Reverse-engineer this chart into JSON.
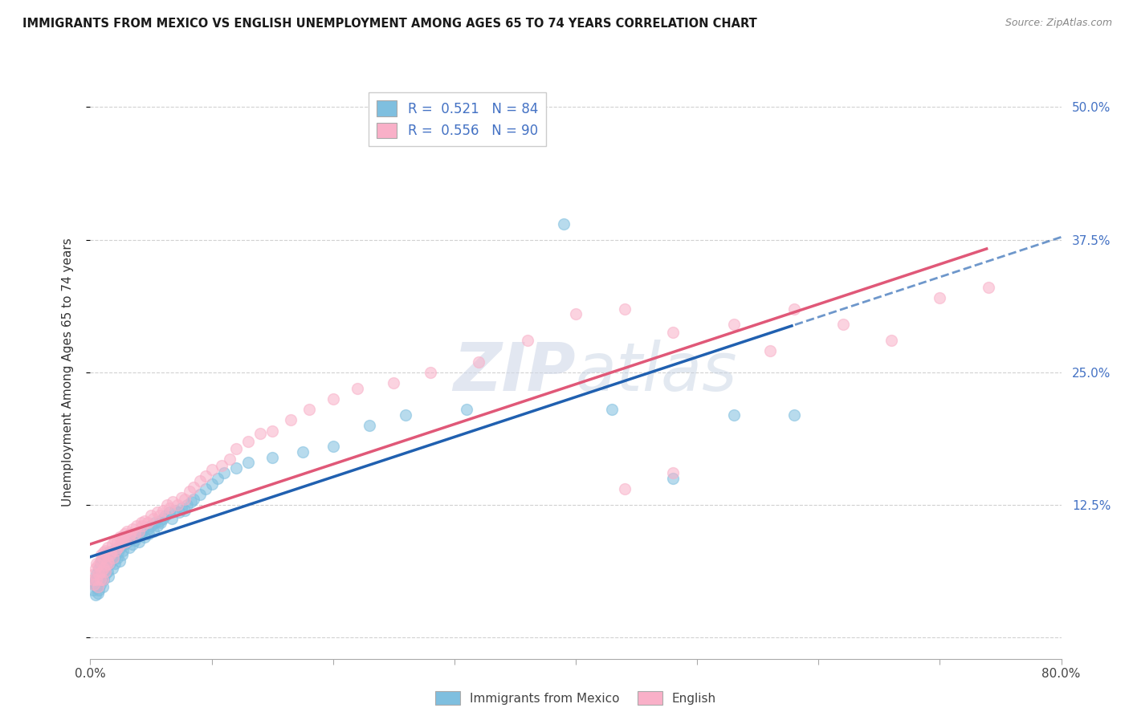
{
  "title": "IMMIGRANTS FROM MEXICO VS ENGLISH UNEMPLOYMENT AMONG AGES 65 TO 74 YEARS CORRELATION CHART",
  "source": "Source: ZipAtlas.com",
  "xlabel_bottom": [
    "Immigrants from Mexico",
    "English"
  ],
  "ylabel": "Unemployment Among Ages 65 to 74 years",
  "xmin": 0.0,
  "xmax": 0.8,
  "ymin": -0.02,
  "ymax": 0.52,
  "yticks": [
    0.0,
    0.125,
    0.25,
    0.375,
    0.5
  ],
  "ytick_labels": [
    "",
    "12.5%",
    "25.0%",
    "37.5%",
    "50.0%"
  ],
  "xticks": [
    0.0,
    0.1,
    0.2,
    0.3,
    0.4,
    0.5,
    0.6,
    0.7,
    0.8
  ],
  "xtick_labels": [
    "0.0%",
    "",
    "",
    "",
    "",
    "",
    "",
    "",
    "80.0%"
  ],
  "r_blue": 0.521,
  "n_blue": 84,
  "r_pink": 0.556,
  "n_pink": 90,
  "blue_color": "#7fbfdf",
  "pink_color": "#f9b0c8",
  "line_blue": "#2060b0",
  "line_pink": "#e05878",
  "watermark_zip": "ZIP",
  "watermark_atlas": "atlas",
  "blue_scatter_x": [
    0.002,
    0.003,
    0.004,
    0.004,
    0.005,
    0.005,
    0.006,
    0.006,
    0.007,
    0.007,
    0.008,
    0.008,
    0.009,
    0.009,
    0.01,
    0.01,
    0.011,
    0.011,
    0.012,
    0.012,
    0.013,
    0.014,
    0.015,
    0.015,
    0.016,
    0.017,
    0.018,
    0.019,
    0.02,
    0.021,
    0.022,
    0.023,
    0.024,
    0.025,
    0.026,
    0.027,
    0.028,
    0.03,
    0.032,
    0.033,
    0.035,
    0.037,
    0.038,
    0.04,
    0.042,
    0.043,
    0.045,
    0.047,
    0.048,
    0.05,
    0.052,
    0.053,
    0.055,
    0.057,
    0.058,
    0.06,
    0.062,
    0.065,
    0.067,
    0.07,
    0.073,
    0.075,
    0.078,
    0.08,
    0.083,
    0.085,
    0.09,
    0.095,
    0.1,
    0.105,
    0.11,
    0.12,
    0.13,
    0.15,
    0.175,
    0.2,
    0.23,
    0.26,
    0.31,
    0.39,
    0.43,
    0.48,
    0.53,
    0.58
  ],
  "blue_scatter_y": [
    0.045,
    0.05,
    0.04,
    0.055,
    0.048,
    0.06,
    0.042,
    0.058,
    0.045,
    0.065,
    0.05,
    0.068,
    0.055,
    0.072,
    0.048,
    0.07,
    0.055,
    0.075,
    0.06,
    0.078,
    0.065,
    0.062,
    0.058,
    0.08,
    0.07,
    0.075,
    0.065,
    0.082,
    0.07,
    0.078,
    0.075,
    0.08,
    0.072,
    0.085,
    0.078,
    0.082,
    0.088,
    0.09,
    0.085,
    0.092,
    0.088,
    0.092,
    0.095,
    0.09,
    0.098,
    0.1,
    0.095,
    0.102,
    0.098,
    0.105,
    0.1,
    0.108,
    0.105,
    0.11,
    0.108,
    0.112,
    0.115,
    0.118,
    0.112,
    0.12,
    0.118,
    0.122,
    0.12,
    0.125,
    0.128,
    0.13,
    0.135,
    0.14,
    0.145,
    0.15,
    0.155,
    0.16,
    0.165,
    0.17,
    0.175,
    0.18,
    0.2,
    0.21,
    0.215,
    0.39,
    0.215,
    0.15,
    0.21,
    0.21
  ],
  "pink_scatter_x": [
    0.002,
    0.003,
    0.003,
    0.004,
    0.005,
    0.005,
    0.006,
    0.006,
    0.007,
    0.008,
    0.008,
    0.009,
    0.009,
    0.01,
    0.01,
    0.011,
    0.011,
    0.012,
    0.012,
    0.013,
    0.014,
    0.014,
    0.015,
    0.016,
    0.017,
    0.018,
    0.019,
    0.02,
    0.021,
    0.022,
    0.023,
    0.024,
    0.025,
    0.026,
    0.027,
    0.028,
    0.029,
    0.03,
    0.032,
    0.033,
    0.035,
    0.037,
    0.038,
    0.04,
    0.042,
    0.043,
    0.045,
    0.047,
    0.05,
    0.052,
    0.055,
    0.057,
    0.06,
    0.063,
    0.065,
    0.068,
    0.072,
    0.075,
    0.078,
    0.082,
    0.085,
    0.09,
    0.095,
    0.1,
    0.108,
    0.115,
    0.12,
    0.13,
    0.14,
    0.15,
    0.165,
    0.18,
    0.2,
    0.22,
    0.25,
    0.28,
    0.32,
    0.36,
    0.4,
    0.44,
    0.48,
    0.53,
    0.58,
    0.62,
    0.66,
    0.7,
    0.74,
    0.56,
    0.48,
    0.44
  ],
  "pink_scatter_y": [
    0.055,
    0.06,
    0.05,
    0.065,
    0.055,
    0.07,
    0.048,
    0.068,
    0.06,
    0.055,
    0.072,
    0.062,
    0.078,
    0.055,
    0.075,
    0.065,
    0.08,
    0.062,
    0.082,
    0.068,
    0.072,
    0.085,
    0.07,
    0.078,
    0.08,
    0.088,
    0.075,
    0.092,
    0.082,
    0.09,
    0.085,
    0.095,
    0.088,
    0.095,
    0.092,
    0.098,
    0.09,
    0.1,
    0.095,
    0.098,
    0.102,
    0.098,
    0.105,
    0.1,
    0.108,
    0.105,
    0.11,
    0.108,
    0.115,
    0.112,
    0.118,
    0.115,
    0.12,
    0.125,
    0.122,
    0.128,
    0.125,
    0.132,
    0.13,
    0.138,
    0.142,
    0.148,
    0.152,
    0.158,
    0.162,
    0.168,
    0.178,
    0.185,
    0.192,
    0.195,
    0.205,
    0.215,
    0.225,
    0.235,
    0.24,
    0.25,
    0.26,
    0.28,
    0.305,
    0.31,
    0.288,
    0.295,
    0.31,
    0.295,
    0.28,
    0.32,
    0.33,
    0.27,
    0.155,
    0.14
  ]
}
